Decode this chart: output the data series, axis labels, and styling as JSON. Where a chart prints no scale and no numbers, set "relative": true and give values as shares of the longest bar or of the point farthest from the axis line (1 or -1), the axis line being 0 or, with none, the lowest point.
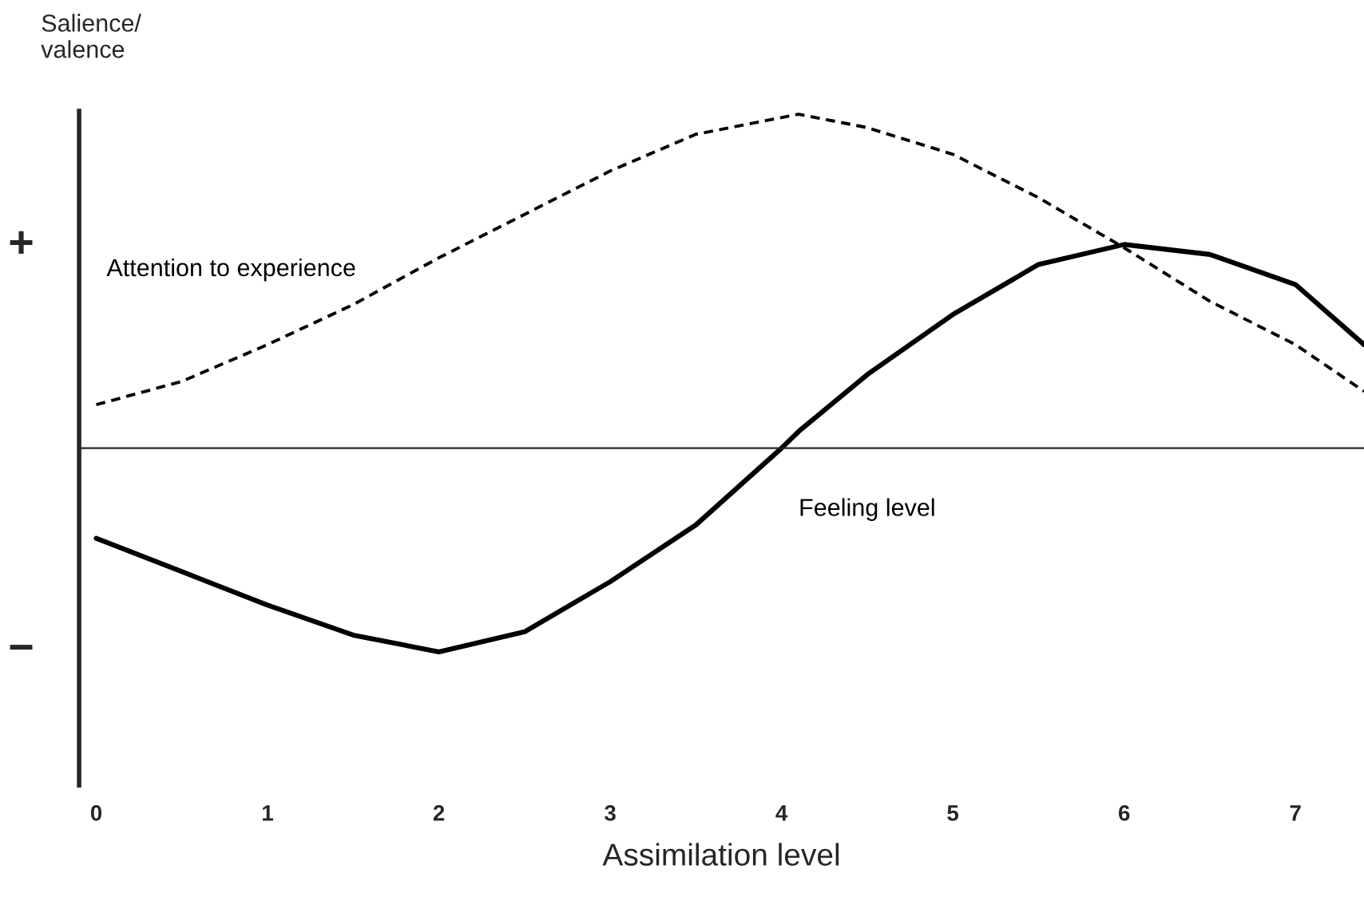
{
  "chart_data": {
    "type": "line",
    "relative": true,
    "xlabel": "Assimilation level",
    "ylabel": "Salience/\nvalence",
    "x": [
      0,
      0.5,
      1,
      1.5,
      2,
      2.5,
      3,
      3.5,
      4,
      4.1,
      4.5,
      5,
      5.5,
      6,
      6.5,
      7,
      7.4
    ],
    "xlim": [
      -0.1,
      7.4
    ],
    "xticks": [
      0,
      1,
      2,
      3,
      4,
      5,
      6,
      7
    ],
    "annotations": [
      "+",
      "−"
    ],
    "series": [
      {
        "name": "Attention to experience",
        "color": "#000000",
        "line_style": "dashed",
        "values": [
          0.13,
          0.2,
          0.31,
          0.43,
          0.57,
          0.7,
          0.83,
          0.94,
          0.99,
          1,
          0.96,
          0.88,
          0.75,
          0.6,
          0.44,
          0.31,
          0.17
        ]
      },
      {
        "name": "Feeling level",
        "color": "#000000",
        "line_style": "solid",
        "values": [
          -0.27,
          -0.37,
          -0.47,
          -0.56,
          -0.61,
          -0.55,
          -0.4,
          -0.23,
          0,
          0.05,
          0.22,
          0.4,
          0.55,
          0.61,
          0.58,
          0.49,
          0.31
        ]
      }
    ],
    "grid": false,
    "legend": false
  }
}
